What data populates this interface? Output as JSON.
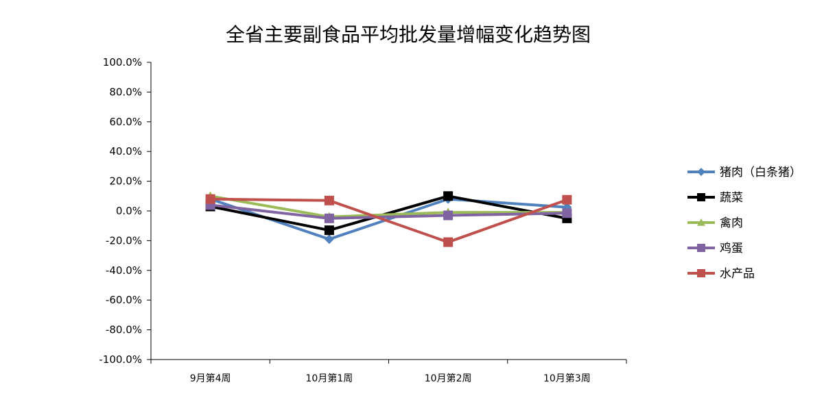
{
  "chart_data": {
    "type": "line",
    "title": "全省主要副食品平均批发量增幅变化趋势图",
    "xlabel": "",
    "ylabel": "",
    "categories": [
      "9月第4周",
      "10月第1周",
      "10月第2周",
      "10月第3周"
    ],
    "ylim": [
      -100,
      100
    ],
    "ytick_step": 20,
    "ytick_labels": [
      "100.0%",
      "80.0%",
      "60.0%",
      "40.0%",
      "20.0%",
      "0.0%",
      "-20.0%",
      "-40.0%",
      "-60.0%",
      "-80.0%",
      "-100.0%"
    ],
    "grid": false,
    "legend_position": "right",
    "series": [
      {
        "name": "猪肉（白条猪）",
        "values": [
          8,
          -19,
          8,
          2.5
        ],
        "color": "#4F81BD",
        "marker": "diamond"
      },
      {
        "name": "蔬菜",
        "values": [
          3,
          -13,
          10,
          -5
        ],
        "color": "#000000",
        "marker": "square"
      },
      {
        "name": "禽肉",
        "values": [
          10,
          -4,
          -1,
          -1
        ],
        "color": "#9BBB59",
        "marker": "triangle"
      },
      {
        "name": "鸡蛋",
        "values": [
          4,
          -5,
          -3,
          -1.5
        ],
        "color": "#8064A2",
        "marker": "square"
      },
      {
        "name": "水产品",
        "values": [
          8,
          7,
          -21,
          7.5
        ],
        "color": "#C0504D",
        "marker": "square"
      }
    ]
  }
}
